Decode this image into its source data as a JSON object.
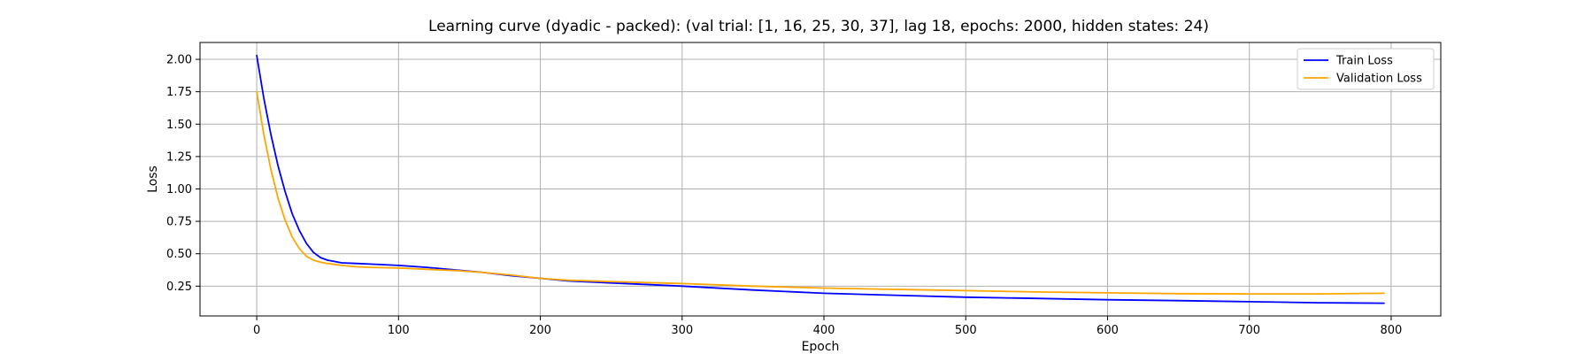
{
  "chart_data": {
    "type": "line",
    "title": "Learning curve (dyadic - packed): (val trial: [1, 16, 25, 30, 37], lag 18, epochs: 2000, hidden states: 24)",
    "xlabel": "Epoch",
    "ylabel": "Loss",
    "xlim": [
      -40,
      835
    ],
    "ylim": [
      0.02,
      2.13
    ],
    "xticks": [
      0,
      100,
      200,
      300,
      400,
      500,
      600,
      700,
      800
    ],
    "yticks": [
      0.25,
      0.5,
      0.75,
      1.0,
      1.25,
      1.5,
      1.75,
      2.0
    ],
    "ytick_labels": [
      "0.25",
      "0.50",
      "0.75",
      "1.00",
      "1.25",
      "1.50",
      "1.75",
      "2.00"
    ],
    "grid": true,
    "legend_position": "top-right",
    "series": [
      {
        "name": "Train Loss",
        "color": "#0000ff",
        "x": [
          0,
          5,
          10,
          15,
          20,
          25,
          30,
          35,
          40,
          45,
          50,
          60,
          70,
          80,
          100,
          120,
          140,
          160,
          180,
          200,
          220,
          250,
          300,
          350,
          400,
          450,
          500,
          550,
          600,
          650,
          700,
          750,
          795
        ],
        "y": [
          2.03,
          1.7,
          1.42,
          1.18,
          0.98,
          0.81,
          0.68,
          0.58,
          0.51,
          0.47,
          0.45,
          0.43,
          0.425,
          0.42,
          0.41,
          0.395,
          0.375,
          0.355,
          0.33,
          0.31,
          0.29,
          0.275,
          0.25,
          0.22,
          0.195,
          0.18,
          0.165,
          0.155,
          0.145,
          0.138,
          0.13,
          0.122,
          0.118
        ]
      },
      {
        "name": "Validation Loss",
        "color": "#ffa500",
        "x": [
          0,
          5,
          10,
          15,
          20,
          25,
          30,
          35,
          40,
          45,
          50,
          60,
          70,
          80,
          100,
          120,
          140,
          160,
          180,
          200,
          220,
          250,
          300,
          350,
          400,
          450,
          500,
          550,
          600,
          650,
          700,
          750,
          795
        ],
        "y": [
          1.75,
          1.42,
          1.15,
          0.93,
          0.76,
          0.63,
          0.54,
          0.48,
          0.45,
          0.435,
          0.425,
          0.41,
          0.4,
          0.395,
          0.39,
          0.38,
          0.37,
          0.355,
          0.335,
          0.31,
          0.295,
          0.285,
          0.27,
          0.25,
          0.235,
          0.225,
          0.215,
          0.205,
          0.198,
          0.192,
          0.19,
          0.19,
          0.195
        ]
      }
    ]
  }
}
